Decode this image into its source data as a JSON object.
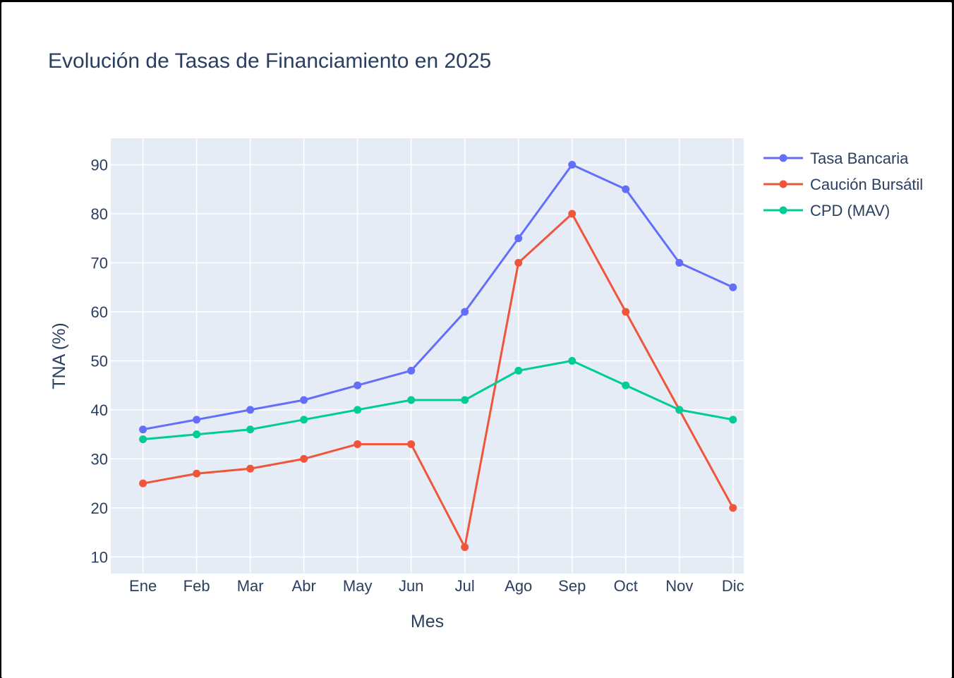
{
  "chart_data": {
    "type": "line",
    "title": "Evolución de Tasas de Financiamiento en 2025",
    "xlabel": "Mes",
    "ylabel": "TNA (%)",
    "categories": [
      "Ene",
      "Feb",
      "Mar",
      "Abr",
      "May",
      "Jun",
      "Jul",
      "Ago",
      "Sep",
      "Oct",
      "Nov",
      "Dic"
    ],
    "yticks": [
      "10",
      "20",
      "30",
      "40",
      "50",
      "60",
      "70",
      "80",
      "90"
    ],
    "ylim": [
      6.6,
      95.4
    ],
    "grid": true,
    "legend_position": "top-right",
    "background_color": "#e5ecf6",
    "series": [
      {
        "name": "Tasa Bancaria",
        "color": "#636efa",
        "values": [
          36,
          38,
          40,
          42,
          45,
          48,
          60,
          75,
          90,
          85,
          70,
          65
        ]
      },
      {
        "name": "Caución Bursátil",
        "color": "#ef553b",
        "values": [
          25,
          27,
          28,
          30,
          33,
          33,
          12,
          70,
          80,
          60,
          40,
          20
        ]
      },
      {
        "name": "CPD (MAV)",
        "color": "#00cc96",
        "values": [
          34,
          35,
          36,
          38,
          40,
          42,
          42,
          48,
          50,
          45,
          40,
          38
        ]
      }
    ]
  }
}
